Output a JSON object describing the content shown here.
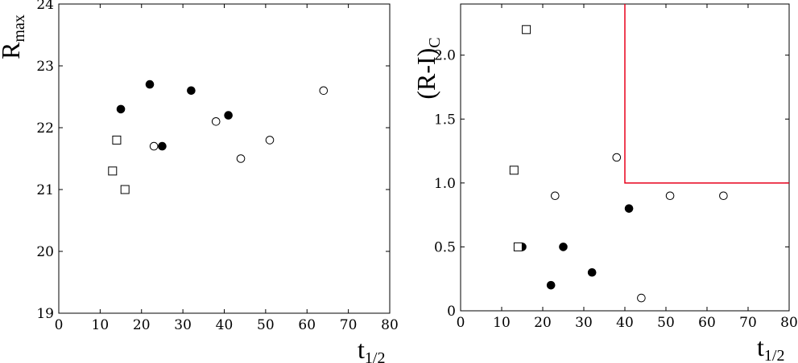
{
  "chart_data": [
    {
      "type": "scatter",
      "xlabel": "t",
      "xlabel_sub": "1/2",
      "ylabel": "R",
      "ylabel_sub": "max",
      "xlim": [
        0,
        80
      ],
      "ylim": [
        19,
        24
      ],
      "x_ticks": [
        0,
        10,
        20,
        30,
        40,
        50,
        60,
        70,
        80
      ],
      "y_ticks": [
        19,
        20,
        21,
        22,
        23,
        24
      ],
      "x_tick_labels": [
        "0",
        "10",
        "20",
        "30",
        "40",
        "50",
        "60",
        "70",
        "80"
      ],
      "y_tick_labels": [
        "19",
        "20",
        "21",
        "22",
        "23",
        "24"
      ],
      "series": [
        {
          "marker": "open-circle",
          "x": [
            23,
            38,
            44,
            51,
            64
          ],
          "y": [
            21.7,
            22.1,
            21.5,
            21.8,
            22.6
          ]
        },
        {
          "marker": "filled-circle",
          "x": [
            15,
            22,
            25,
            32,
            41
          ],
          "y": [
            22.3,
            22.7,
            21.7,
            22.6,
            22.2
          ]
        },
        {
          "marker": "open-square",
          "x": [
            13,
            14,
            16
          ],
          "y": [
            21.3,
            21.8,
            21.0
          ]
        }
      ]
    },
    {
      "type": "scatter",
      "xlabel": "t",
      "xlabel_sub": "1/2",
      "ylabel": "(R-I)",
      "ylabel_sub": "C",
      "xlim": [
        0,
        80
      ],
      "ylim": [
        0,
        2.4
      ],
      "x_ticks": [
        0,
        10,
        20,
        30,
        40,
        50,
        60,
        70,
        80
      ],
      "y_ticks": [
        0,
        0.5,
        1.0,
        1.5,
        2.0
      ],
      "x_tick_labels": [
        "0",
        "10",
        "20",
        "30",
        "40",
        "50",
        "60",
        "70",
        "80"
      ],
      "y_tick_labels": [
        "0",
        "0.5",
        "1.0",
        "1.5",
        "2.0"
      ],
      "region": {
        "x_from": 40,
        "y_from": 1.0,
        "color": "#e8001c"
      },
      "series": [
        {
          "marker": "open-circle",
          "x": [
            23,
            38,
            44,
            51,
            64
          ],
          "y": [
            0.9,
            1.2,
            0.1,
            0.9,
            0.9
          ]
        },
        {
          "marker": "filled-circle",
          "x": [
            15,
            22,
            25,
            32,
            41
          ],
          "y": [
            0.5,
            0.2,
            0.5,
            0.3,
            0.8
          ]
        },
        {
          "marker": "open-square",
          "x": [
            13,
            14,
            16
          ],
          "y": [
            1.1,
            0.5,
            2.2
          ]
        }
      ]
    }
  ]
}
